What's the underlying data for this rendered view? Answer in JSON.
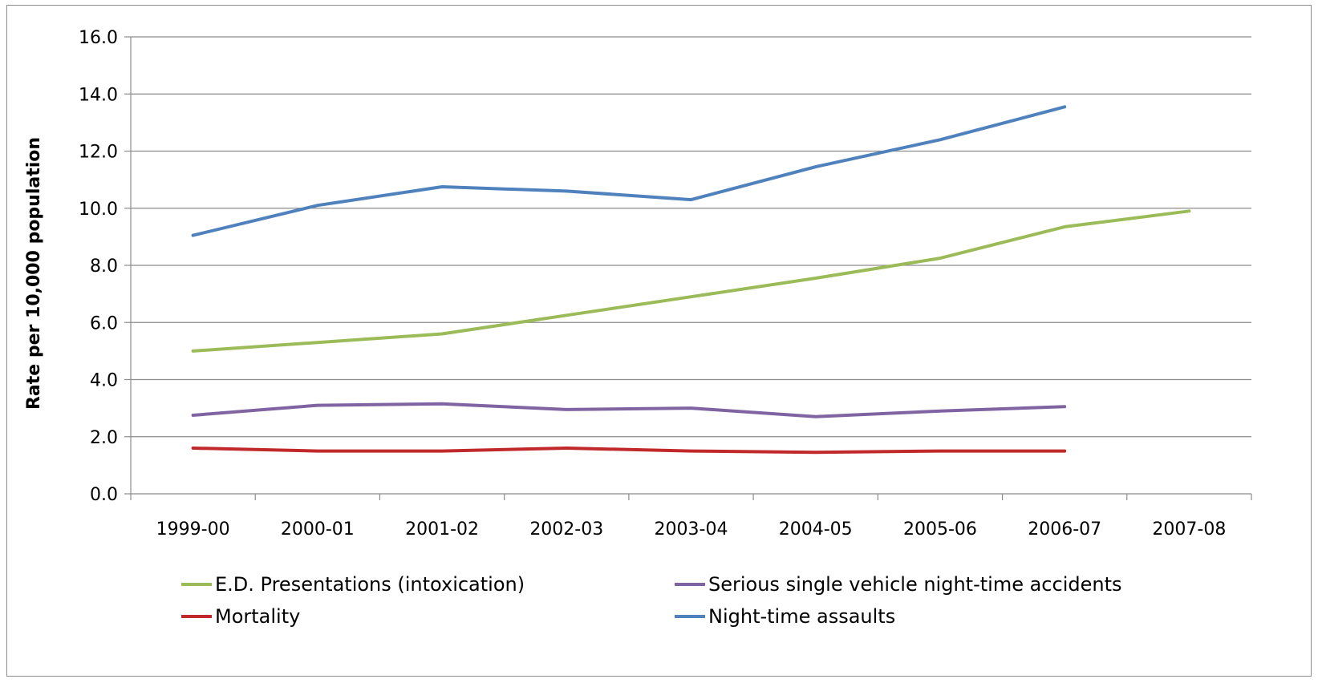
{
  "chart_data": {
    "type": "line",
    "title": "",
    "xlabel": "",
    "ylabel": "Rate per 10,000 population",
    "ylim": [
      0,
      16
    ],
    "yticks": [
      "0.0",
      "2.0",
      "4.0",
      "6.0",
      "8.0",
      "10.0",
      "12.0",
      "14.0",
      "16.0"
    ],
    "categories": [
      "1999-00",
      "2000-01",
      "2001-02",
      "2002-03",
      "2003-04",
      "2004-05",
      "2005-06",
      "2006-07",
      "2007-08"
    ],
    "grid": true,
    "legend_position": "bottom",
    "series": [
      {
        "name": "E.D. Presentations (intoxication)",
        "color": "#9bbb59",
        "values": [
          5.0,
          5.3,
          5.6,
          6.25,
          6.9,
          7.55,
          8.25,
          9.35,
          9.9
        ]
      },
      {
        "name": "Serious single vehicle night-time accidents",
        "color": "#8064a2",
        "values": [
          2.75,
          3.1,
          3.15,
          2.95,
          3.0,
          2.7,
          2.9,
          3.05,
          null
        ]
      },
      {
        "name": "Mortality",
        "color": "#c0282a",
        "values": [
          1.6,
          1.5,
          1.5,
          1.6,
          1.5,
          1.45,
          1.5,
          1.5,
          null
        ]
      },
      {
        "name": "Night-time assaults",
        "color": "#4f81bd",
        "values": [
          9.05,
          10.1,
          10.75,
          10.6,
          10.3,
          11.45,
          12.4,
          13.55,
          null
        ]
      }
    ]
  }
}
